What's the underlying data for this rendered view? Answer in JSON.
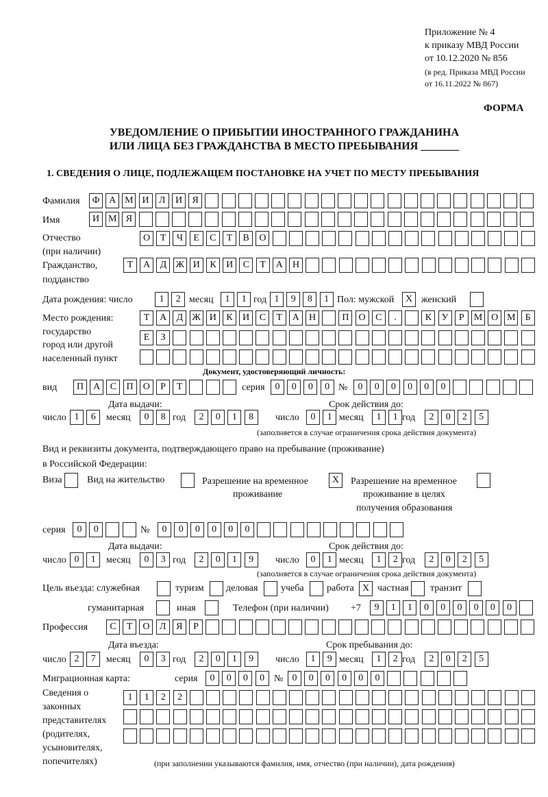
{
  "header": {
    "line1": "Приложение № 4",
    "line2": "к приказу МВД России",
    "line3": "от 10.12.2020 № 856",
    "line4": "(в ред. Приказа МВД России",
    "line5": "от 16.11.2022 № 867)",
    "forma": "ФОРМА",
    "title1": "УВЕДОМЛЕНИЕ О ПРИБЫТИИ ИНОСТРАННОГО ГРАЖДАНИНА",
    "title2": "ИЛИ ЛИЦА БЕЗ ГРАЖДАНСТВА В МЕСТО ПРЕБЫВАНИЯ _______",
    "section1": "1. СВЕДЕНИЯ О ЛИЦЕ, ПОДЛЕЖАЩЕМ ПОСТАНОВКЕ НА УЧЕТ ПО МЕСТУ ПРЕБЫВАНИЯ"
  },
  "labels": {
    "surname": "Фамилия",
    "name": "Имя",
    "patronymic1": "Отчество",
    "patronymic2": "(при наличии)",
    "citizenship1": "Гражданство,",
    "citizenship2": "подданство",
    "birthdate": "Дата рождения:  число",
    "month": "месяц",
    "year": "год",
    "day": "число",
    "sex": "Пол: мужской",
    "female": "женский",
    "birthplace1": "Место рождения:",
    "birthplace2": "государство",
    "birthplace3": "город или другой",
    "birthplace4": "населенный пункт",
    "id_doc": "Документ, удостоверяющий личность:",
    "kind": "вид",
    "series": "серия",
    "number": "№",
    "issue_date": "Дата выдачи:",
    "valid_until": "Срок действия до:",
    "validity_note": "(заполняется в случае ограничения срока действия документа)",
    "right_doc1": "Вид и реквизиты документа, подтверждающего право на пребывание (проживание)",
    "right_doc2": "в Российской Федерации:",
    "visa": "Виза",
    "residence": "Вид на жительство",
    "trp1": "Разрешение на временное",
    "trp2": "проживание",
    "trpe1": "Разрешение на временное",
    "trpe2": "проживание в целях",
    "trpe3": "получения образования",
    "purpose": "Цель въезда: служебная",
    "tourism": "туризм",
    "business": "деловая",
    "study": "учеба",
    "work": "работа",
    "private": "частная",
    "transit": "транзит",
    "humanitarian": "гуманитарная",
    "other": "иная",
    "phone": "Телефон (при наличии)",
    "phone_prefix": "+7",
    "profession": "Профессия",
    "entry_date": "Дата въезда:",
    "stay_until": "Срок пребывания до:",
    "migration_card": "Миграционная карта:",
    "reps1": "Сведения о",
    "reps2": "законных",
    "reps3": "представителях",
    "reps4": "(родителях,",
    "reps5": "усыновителях,",
    "reps6": "попечителях)",
    "reps_note": "(при заполнении указываются фамилия, имя, отчество (при наличии), дата рождения)"
  },
  "fields": {
    "surname": "ФАМИЛИЯ",
    "name": "ИМЯ",
    "patronymic": "ОТЧЕСТВО",
    "citizenship": "ТАДЖИКИСТАН",
    "birth_day": "12",
    "birth_month": "11",
    "birth_year": "1981",
    "sex_male": "X",
    "sex_female": "",
    "birthplace_line1": "ТАДЖИКИСТАН ПОС. КУРМОМБ",
    "birthplace_line2": "ЕЗ",
    "birthplace_line3": "",
    "id_kind": "ПАСПОРТ",
    "id_series": "0000",
    "id_number": "000000",
    "id_issue_day": "16",
    "id_issue_month": "08",
    "id_issue_year": "2018",
    "id_valid_day": "01",
    "id_valid_month": "11",
    "id_valid_year": "2025",
    "visa": "",
    "residence_permit": "",
    "temp_residence_permit": "X",
    "temp_residence_education": "",
    "right_series": "00",
    "right_number": "000000",
    "right_issue_day": "01",
    "right_issue_month": "03",
    "right_issue_year": "2019",
    "right_valid_day": "01",
    "right_valid_month": "12",
    "right_valid_year": "2025",
    "purpose_official": "",
    "purpose_tourism": "",
    "purpose_business": "",
    "purpose_study": "",
    "purpose_work": "X",
    "purpose_private": "",
    "purpose_transit": "",
    "purpose_humanitarian": "",
    "purpose_other": "",
    "phone": "911000000",
    "profession": "СТОЛЯР",
    "entry_day": "27",
    "entry_month": "03",
    "entry_year": "2019",
    "stay_day": "19",
    "stay_month": "12",
    "stay_year": "2025",
    "mc_series": "0000",
    "mc_number": "000000",
    "reps_line1": "1122",
    "reps_line2": "",
    "reps_line3": ""
  }
}
